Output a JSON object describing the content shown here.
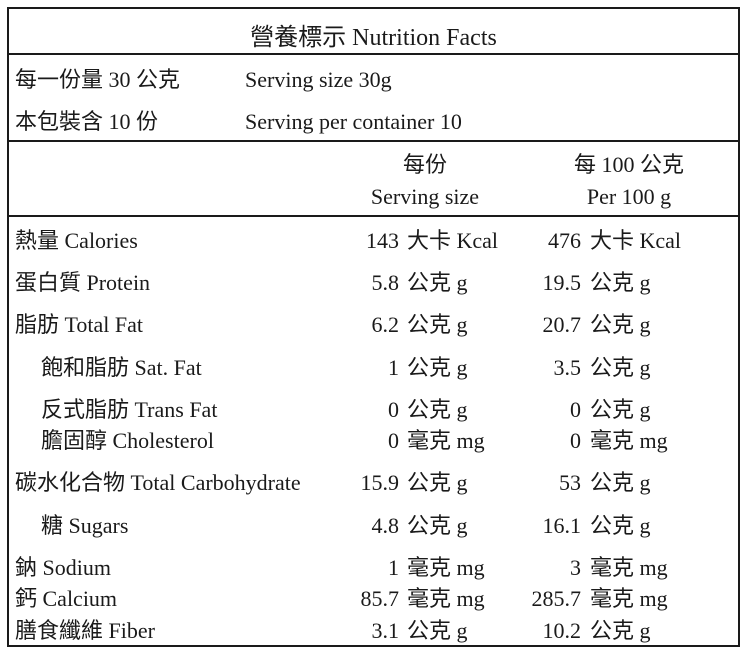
{
  "title": "營養標示 Nutrition Facts",
  "serving": {
    "per_serving_zh": "每一份量 30 公克",
    "per_serving_en": "Serving size 30g",
    "servings_zh": "本包裝含 10 份",
    "servings_en": "Serving per container 10"
  },
  "columns": {
    "serving_zh": "每份",
    "serving_en": "Serving size",
    "per100_zh": "每 100 公克",
    "per100_en": "Per 100 g"
  },
  "rows": [
    {
      "label": "熱量 Calories",
      "serving_value": "143",
      "serving_unit": "大卡 Kcal",
      "per100_value": "476",
      "per100_unit": "大卡 Kcal"
    },
    {
      "label": "蛋白質 Protein",
      "serving_value": "5.8",
      "serving_unit": "公克 g",
      "per100_value": "19.5",
      "per100_unit": "公克 g"
    },
    {
      "label": "脂肪 Total Fat",
      "serving_value": "6.2",
      "serving_unit": "公克 g",
      "per100_value": "20.7",
      "per100_unit": "公克 g"
    },
    {
      "label": "飽和脂肪 Sat. Fat",
      "serving_value": "1",
      "serving_unit": "公克 g",
      "per100_value": "3.5",
      "per100_unit": "公克 g"
    },
    {
      "label": "反式脂肪 Trans Fat",
      "serving_value": "0",
      "serving_unit": "公克 g",
      "per100_value": "0",
      "per100_unit": "公克 g"
    },
    {
      "label": "膽固醇 Cholesterol",
      "serving_value": "0",
      "serving_unit": "毫克 mg",
      "per100_value": "0",
      "per100_unit": "毫克 mg"
    },
    {
      "label": "碳水化合物 Total Carbohydrate",
      "serving_value": "15.9",
      "serving_unit": "公克 g",
      "per100_value": "53",
      "per100_unit": "公克 g"
    },
    {
      "label": "糖 Sugars",
      "serving_value": "4.8",
      "serving_unit": "公克 g",
      "per100_value": "16.1",
      "per100_unit": "公克 g"
    },
    {
      "label": "鈉 Sodium",
      "serving_value": "1",
      "serving_unit": "毫克 mg",
      "per100_value": "3",
      "per100_unit": "毫克 mg"
    },
    {
      "label": "鈣 Calcium",
      "serving_value": "85.7",
      "serving_unit": "毫克 mg",
      "per100_value": "285.7",
      "per100_unit": "毫克 mg"
    },
    {
      "label": "膳食纖維 Fiber",
      "serving_value": "3.1",
      "serving_unit": "公克 g",
      "per100_value": "10.2",
      "per100_unit": "公克 g"
    }
  ]
}
